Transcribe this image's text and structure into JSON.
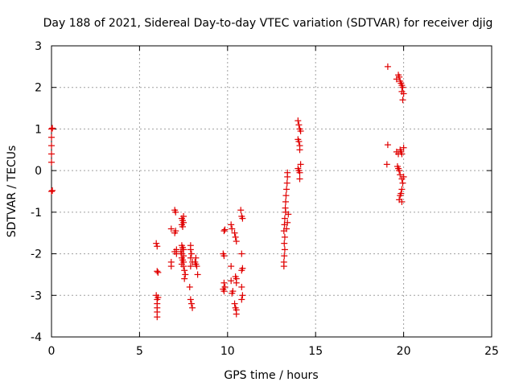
{
  "chart_data": {
    "type": "scatter",
    "title": "Day 188 of 2021, Sidereal Day-to-day VTEC variation (SDTVAR) for receiver djig",
    "xlabel": "GPS time / hours",
    "ylabel": "SDTVAR / TECUs",
    "xlim": [
      0,
      25
    ],
    "ylim": [
      -4,
      3
    ],
    "xticks": [
      "0",
      "5",
      "10",
      "15",
      "20",
      "25"
    ],
    "yticks": [
      "-4",
      "-3",
      "-2",
      "-1",
      "0",
      "1",
      "2",
      "3"
    ],
    "grid": true,
    "marker": "+",
    "color": "#e00000",
    "series": [
      {
        "name": "SDTVAR",
        "points": [
          [
            0.0,
            1.0
          ],
          [
            0.0,
            0.8
          ],
          [
            0.0,
            0.6
          ],
          [
            0.0,
            0.4
          ],
          [
            0.0,
            0.2
          ],
          [
            0.0,
            -0.5
          ],
          [
            0.05,
            1.02
          ],
          [
            0.05,
            -0.48
          ],
          [
            5.95,
            -1.75
          ],
          [
            6.0,
            -1.82
          ],
          [
            6.0,
            -2.42
          ],
          [
            6.05,
            -2.45
          ],
          [
            5.95,
            -3.0
          ],
          [
            6.0,
            -3.1
          ],
          [
            6.0,
            -3.2
          ],
          [
            6.0,
            -3.3
          ],
          [
            6.0,
            -3.4
          ],
          [
            6.0,
            -3.52
          ],
          [
            6.05,
            -3.05
          ],
          [
            6.8,
            -1.4
          ],
          [
            6.8,
            -2.2
          ],
          [
            6.8,
            -2.3
          ],
          [
            7.0,
            -0.95
          ],
          [
            7.05,
            -1.0
          ],
          [
            7.0,
            -1.5
          ],
          [
            7.05,
            -1.45
          ],
          [
            7.1,
            -1.9
          ],
          [
            7.0,
            -1.95
          ],
          [
            7.1,
            -2.0
          ],
          [
            7.4,
            -1.15
          ],
          [
            7.45,
            -1.2
          ],
          [
            7.5,
            -1.1
          ],
          [
            7.5,
            -1.25
          ],
          [
            7.4,
            -1.3
          ],
          [
            7.45,
            -1.35
          ],
          [
            7.4,
            -1.8
          ],
          [
            7.45,
            -1.85
          ],
          [
            7.5,
            -1.9
          ],
          [
            7.35,
            -1.95
          ],
          [
            7.4,
            -2.0
          ],
          [
            7.5,
            -2.05
          ],
          [
            7.4,
            -2.1
          ],
          [
            7.45,
            -2.15
          ],
          [
            7.5,
            -2.2
          ],
          [
            7.4,
            -2.25
          ],
          [
            7.5,
            -2.3
          ],
          [
            7.55,
            -2.4
          ],
          [
            7.6,
            -2.5
          ],
          [
            7.55,
            -2.6
          ],
          [
            7.9,
            -1.8
          ],
          [
            7.9,
            -1.9
          ],
          [
            7.95,
            -2.0
          ],
          [
            7.9,
            -2.1
          ],
          [
            8.0,
            -2.2
          ],
          [
            7.9,
            -2.3
          ],
          [
            7.85,
            -2.8
          ],
          [
            7.9,
            -3.1
          ],
          [
            7.95,
            -3.2
          ],
          [
            8.0,
            -3.3
          ],
          [
            8.15,
            -2.2
          ],
          [
            8.2,
            -2.25
          ],
          [
            8.25,
            -2.3
          ],
          [
            8.3,
            -2.5
          ],
          [
            8.2,
            -2.1
          ],
          [
            9.8,
            -1.45
          ],
          [
            9.85,
            -1.42
          ],
          [
            9.75,
            -2.0
          ],
          [
            9.8,
            -2.05
          ],
          [
            9.8,
            -2.7
          ],
          [
            9.85,
            -2.8
          ],
          [
            9.75,
            -2.85
          ],
          [
            9.8,
            -2.9
          ],
          [
            10.2,
            -1.3
          ],
          [
            10.25,
            -1.4
          ],
          [
            10.2,
            -2.3
          ],
          [
            10.2,
            -2.65
          ],
          [
            10.3,
            -2.9
          ],
          [
            10.25,
            -2.95
          ],
          [
            10.4,
            -1.5
          ],
          [
            10.45,
            -1.6
          ],
          [
            10.5,
            -1.7
          ],
          [
            10.45,
            -2.55
          ],
          [
            10.5,
            -2.6
          ],
          [
            10.5,
            -2.7
          ],
          [
            10.4,
            -3.2
          ],
          [
            10.45,
            -3.3
          ],
          [
            10.5,
            -3.35
          ],
          [
            10.5,
            -3.45
          ],
          [
            10.75,
            -0.95
          ],
          [
            10.8,
            -1.1
          ],
          [
            10.85,
            -1.15
          ],
          [
            10.8,
            -2.0
          ],
          [
            10.85,
            -2.35
          ],
          [
            10.8,
            -2.4
          ],
          [
            10.8,
            -2.8
          ],
          [
            10.85,
            -3.0
          ],
          [
            10.8,
            -3.1
          ],
          [
            13.2,
            -2.3
          ],
          [
            13.2,
            -2.2
          ],
          [
            13.22,
            -2.05
          ],
          [
            13.25,
            -1.9
          ],
          [
            13.22,
            -1.75
          ],
          [
            13.25,
            -1.6
          ],
          [
            13.2,
            -1.45
          ],
          [
            13.23,
            -1.3
          ],
          [
            13.25,
            -1.15
          ],
          [
            13.3,
            -1.0
          ],
          [
            13.28,
            -0.9
          ],
          [
            13.3,
            -0.75
          ],
          [
            13.32,
            -0.6
          ],
          [
            13.35,
            -0.45
          ],
          [
            13.38,
            -0.3
          ],
          [
            13.4,
            -0.15
          ],
          [
            13.4,
            -0.05
          ],
          [
            13.45,
            -1.05
          ],
          [
            13.4,
            -1.25
          ],
          [
            13.35,
            -1.4
          ],
          [
            14.0,
            1.2
          ],
          [
            14.05,
            1.1
          ],
          [
            14.1,
            1.0
          ],
          [
            14.15,
            0.95
          ],
          [
            14.0,
            0.75
          ],
          [
            14.05,
            0.7
          ],
          [
            14.1,
            0.6
          ],
          [
            14.1,
            0.5
          ],
          [
            14.0,
            0.05
          ],
          [
            14.05,
            0.0
          ],
          [
            14.1,
            -0.05
          ],
          [
            14.15,
            0.15
          ],
          [
            14.1,
            -0.2
          ],
          [
            19.1,
            2.5
          ],
          [
            19.1,
            0.62
          ],
          [
            19.05,
            0.15
          ],
          [
            19.6,
            2.2
          ],
          [
            19.7,
            2.3
          ],
          [
            19.75,
            2.25
          ],
          [
            19.8,
            2.15
          ],
          [
            19.85,
            2.1
          ],
          [
            19.9,
            2.05
          ],
          [
            19.95,
            2.0
          ],
          [
            19.9,
            1.9
          ],
          [
            20.0,
            1.85
          ],
          [
            19.95,
            1.7
          ],
          [
            19.6,
            0.45
          ],
          [
            19.7,
            0.4
          ],
          [
            19.8,
            0.5
          ],
          [
            19.85,
            0.45
          ],
          [
            19.9,
            0.4
          ],
          [
            20.0,
            0.55
          ],
          [
            19.65,
            0.1
          ],
          [
            19.7,
            0.05
          ],
          [
            19.75,
            0.0
          ],
          [
            19.8,
            -0.1
          ],
          [
            19.9,
            -0.2
          ],
          [
            20.0,
            -0.15
          ],
          [
            19.95,
            -0.3
          ],
          [
            19.9,
            -0.45
          ],
          [
            19.85,
            -0.55
          ],
          [
            19.8,
            -0.6
          ],
          [
            19.75,
            -0.7
          ],
          [
            19.9,
            -0.75
          ]
        ]
      }
    ]
  }
}
